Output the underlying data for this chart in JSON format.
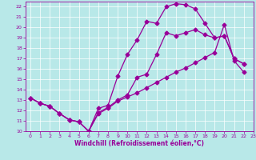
{
  "title": "",
  "xlabel": "Windchill (Refroidissement éolien,°C)",
  "xlim": [
    -0.5,
    23
  ],
  "ylim": [
    10,
    22.5
  ],
  "xticks": [
    0,
    1,
    2,
    3,
    4,
    5,
    6,
    7,
    8,
    9,
    10,
    11,
    12,
    13,
    14,
    15,
    16,
    17,
    18,
    19,
    20,
    21,
    22,
    23
  ],
  "yticks": [
    10,
    11,
    12,
    13,
    14,
    15,
    16,
    17,
    18,
    19,
    20,
    21,
    22
  ],
  "bg_color": "#b8e8e8",
  "line_color": "#990099",
  "grid_color": "#ffffff",
  "line1_x": [
    0,
    1,
    2,
    3,
    4,
    5,
    6,
    7,
    8,
    9,
    10,
    11,
    12,
    13,
    14,
    15,
    16,
    17,
    18,
    19,
    20,
    21,
    22
  ],
  "line1_y": [
    13.2,
    12.7,
    12.4,
    11.7,
    11.1,
    10.9,
    10.0,
    12.2,
    12.5,
    15.3,
    17.4,
    18.8,
    20.6,
    20.4,
    22.0,
    22.3,
    22.2,
    21.8,
    20.4,
    19.0,
    19.2,
    17.0,
    16.5
  ],
  "line2_x": [
    0,
    1,
    2,
    3,
    4,
    5,
    6,
    7,
    8,
    9,
    10,
    11,
    12,
    13,
    14,
    15,
    16,
    17,
    18,
    19,
    20,
    21,
    22
  ],
  "line2_y": [
    13.2,
    12.7,
    12.4,
    11.7,
    11.1,
    10.9,
    10.0,
    11.8,
    12.3,
    13.0,
    13.5,
    15.2,
    15.5,
    17.4,
    19.5,
    19.2,
    19.5,
    19.8,
    19.3,
    19.0,
    19.2,
    17.0,
    16.5
  ],
  "line3_x": [
    0,
    1,
    2,
    3,
    4,
    5,
    6,
    7,
    8,
    9,
    10,
    11,
    12,
    13,
    14,
    15,
    16,
    17,
    18,
    19,
    20,
    21,
    22
  ],
  "line3_y": [
    13.2,
    12.7,
    12.4,
    11.7,
    11.1,
    10.9,
    10.0,
    11.7,
    12.2,
    12.9,
    13.3,
    13.7,
    14.2,
    14.7,
    15.2,
    15.7,
    16.1,
    16.6,
    17.1,
    17.6,
    20.3,
    16.8,
    15.7
  ],
  "marker": "D",
  "markersize": 2.5,
  "linewidth": 0.9
}
